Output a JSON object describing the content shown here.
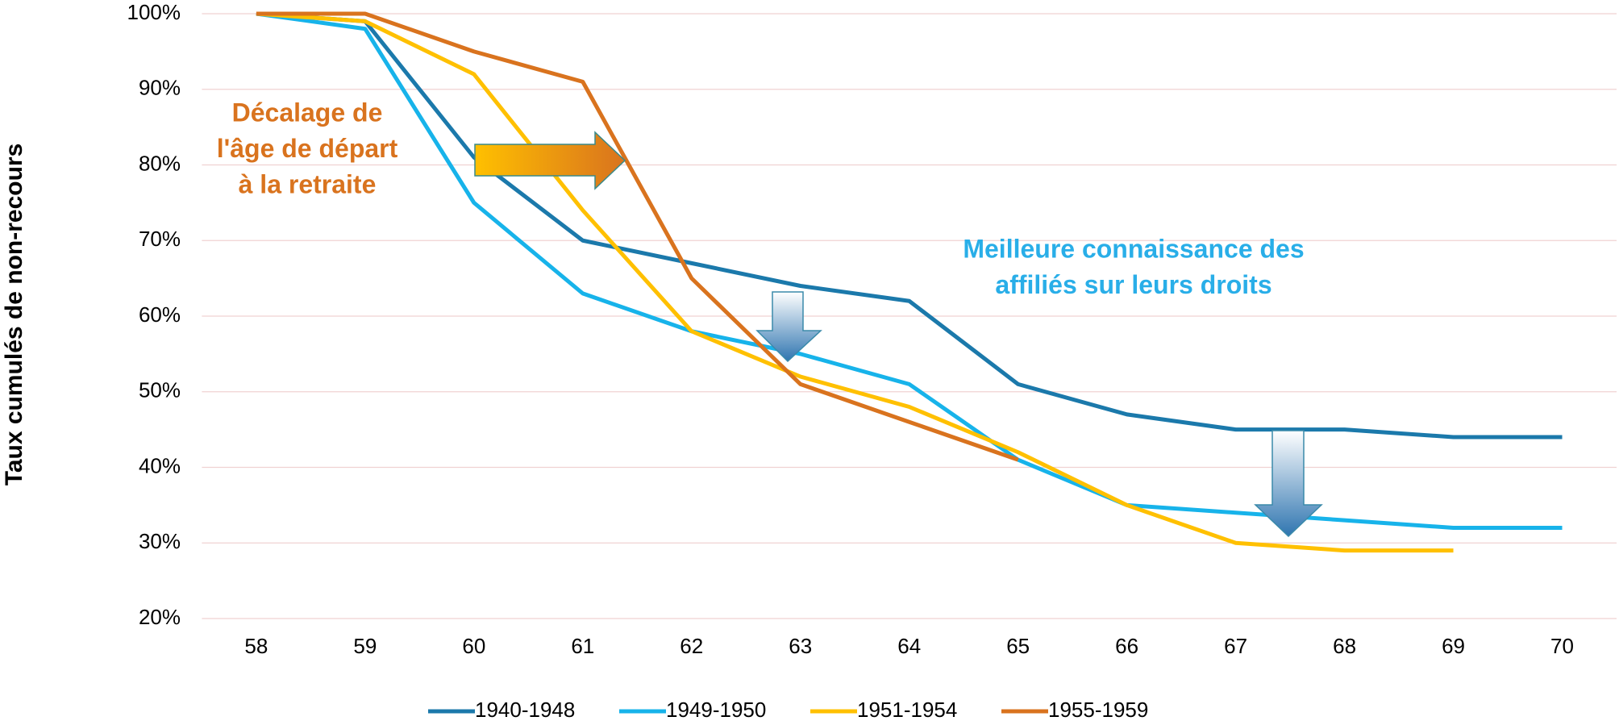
{
  "chart_data": {
    "type": "line",
    "ylabel": "Taux cumulés de non-recours",
    "categories": [
      "58",
      "59",
      "60",
      "61",
      "62",
      "63",
      "64",
      "65",
      "66",
      "67",
      "68",
      "69",
      "70"
    ],
    "series": [
      {
        "name": "1940-1948",
        "color": "#1b79ab",
        "values": [
          100,
          99,
          81,
          70,
          67,
          64,
          62,
          51,
          47,
          45,
          45,
          44,
          44
        ]
      },
      {
        "name": "1949-1950",
        "color": "#17b3ea",
        "values": [
          100,
          98,
          75,
          63,
          58,
          55,
          51,
          41,
          35,
          34,
          33,
          32,
          32
        ]
      },
      {
        "name": "1951-1954",
        "color": "#ffc000",
        "values": [
          100,
          99,
          92,
          74,
          58,
          52,
          48,
          42,
          35,
          30,
          29,
          29,
          null
        ]
      },
      {
        "name": "1955-1959",
        "color": "#d9731e",
        "values": [
          100,
          100,
          95,
          91,
          65,
          51,
          46,
          41,
          null,
          null,
          null,
          null,
          null
        ]
      }
    ],
    "ylim": [
      20,
      100
    ],
    "yticks": [
      {
        "value": 20,
        "label": "20%"
      },
      {
        "value": 30,
        "label": "30%"
      },
      {
        "value": 40,
        "label": "40%"
      },
      {
        "value": 50,
        "label": "50%"
      },
      {
        "value": 60,
        "label": "60%"
      },
      {
        "value": 70,
        "label": "70%"
      },
      {
        "value": 80,
        "label": "80%"
      },
      {
        "value": 90,
        "label": "90%"
      },
      {
        "value": 100,
        "label": "100%"
      }
    ],
    "grid": true,
    "legend": "bottom",
    "annotations": [
      {
        "lines": [
          "Décalage de",
          "l'âge de départ",
          "à la retraite"
        ],
        "color": "#d9731e"
      },
      {
        "lines": [
          "Meilleure connaissance des",
          "affiliés sur leurs droits"
        ],
        "color": "#29aee8"
      }
    ]
  }
}
